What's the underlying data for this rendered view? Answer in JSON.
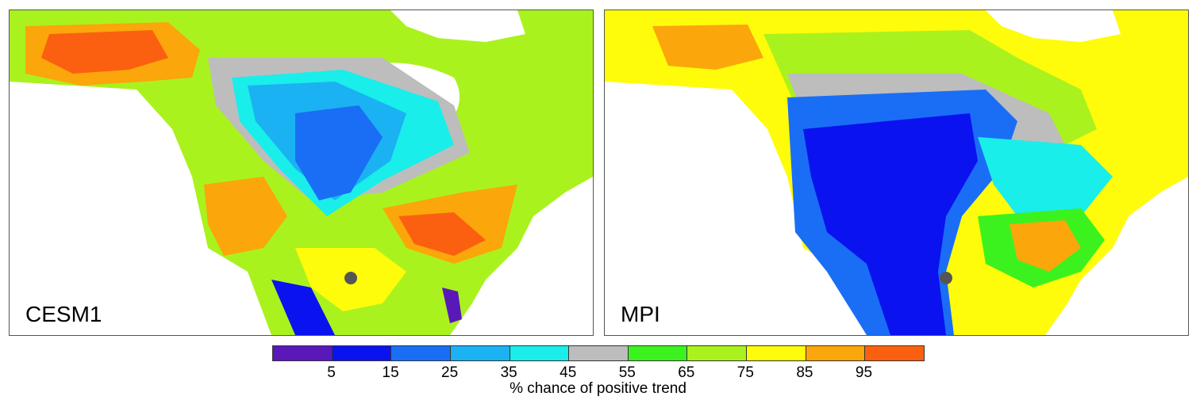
{
  "panels": [
    {
      "label": "CESM1",
      "fields": [
        "blue-dip-plains",
        "orange-southeast",
        "orange-alaska",
        "orange-southwest"
      ]
    },
    {
      "label": "MPI",
      "fields": [
        "deep-blue-west-central",
        "orange-southeast-small",
        "yellow-canada"
      ]
    }
  ],
  "colorbar": {
    "colors": [
      "#5a18b8",
      "#0a12f0",
      "#1a6ef5",
      "#1ab2f2",
      "#19eeea",
      "#bdbdbd",
      "#3cf21e",
      "#aaf21e",
      "#fefc0a",
      "#fba60a",
      "#fb6010"
    ],
    "tick_labels": [
      "5",
      "15",
      "25",
      "35",
      "45",
      "55",
      "65",
      "75",
      "85",
      "95"
    ],
    "title": "% chance of positive trend"
  }
}
